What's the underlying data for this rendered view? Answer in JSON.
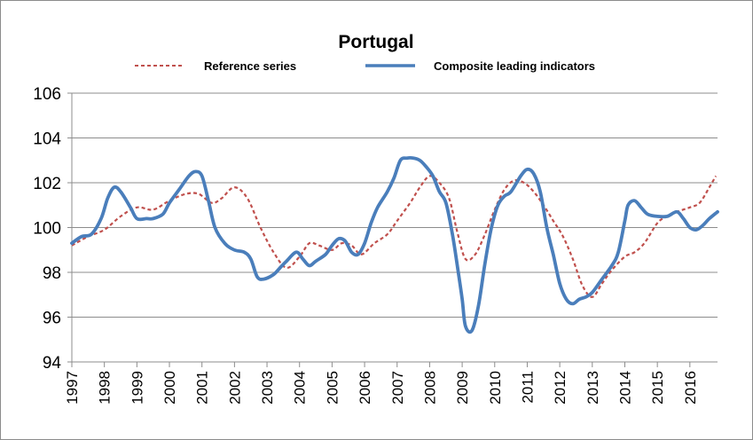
{
  "chart_data": {
    "type": "line",
    "title": "Portugal",
    "xlabel": "",
    "ylabel": "",
    "xlim": [
      1997,
      2016.85
    ],
    "ylim": [
      94,
      106
    ],
    "y_ticks": [
      94,
      96,
      98,
      100,
      102,
      104,
      106
    ],
    "x_ticks": [
      1997,
      1998,
      1999,
      2000,
      2001,
      2002,
      2003,
      2004,
      2005,
      2006,
      2007,
      2008,
      2009,
      2010,
      2011,
      2012,
      2013,
      2014,
      2015,
      2016
    ],
    "x_tick_labels": [
      "1997",
      "1998",
      "1999",
      "2000",
      "2001",
      "2002",
      "2003",
      "2004",
      "2005",
      "2006",
      "2007",
      "2008",
      "2009",
      "2010",
      "2011",
      "2012",
      "2013",
      "2014",
      "2015",
      "2016"
    ],
    "grid": "horizontal",
    "legend_position": "top",
    "series": [
      {
        "name": "Reference series",
        "color": "#c0504d",
        "style": "dashed",
        "x": [
          1997.0,
          1997.5,
          1998.0,
          1998.5,
          1999.0,
          1999.5,
          2000.0,
          2000.5,
          2000.9,
          2001.3,
          2001.6,
          2002.0,
          2002.4,
          2002.8,
          2003.2,
          2003.6,
          2004.0,
          2004.3,
          2004.6,
          2005.0,
          2005.3,
          2005.6,
          2005.9,
          2006.3,
          2006.7,
          2007.0,
          2007.4,
          2007.7,
          2008.0,
          2008.3,
          2008.6,
          2008.85,
          2009.1,
          2009.4,
          2009.7,
          2010.0,
          2010.3,
          2010.6,
          2010.9,
          2011.2,
          2011.5,
          2011.8,
          2012.1,
          2012.4,
          2012.7,
          2013.0,
          2013.3,
          2013.6,
          2014.0,
          2014.3,
          2014.6,
          2015.0,
          2015.3,
          2015.6,
          2016.0,
          2016.3,
          2016.6,
          2016.8
        ],
        "values": [
          99.2,
          99.6,
          99.9,
          100.5,
          100.9,
          100.8,
          101.2,
          101.5,
          101.5,
          101.1,
          101.3,
          101.8,
          101.3,
          100.0,
          98.9,
          98.2,
          98.7,
          99.3,
          99.2,
          99.0,
          99.3,
          99.2,
          98.8,
          99.3,
          99.7,
          100.3,
          101.1,
          101.8,
          102.3,
          102.0,
          101.3,
          99.8,
          98.6,
          98.8,
          99.7,
          100.8,
          101.7,
          102.1,
          102.0,
          101.6,
          101.0,
          100.3,
          99.6,
          98.6,
          97.4,
          96.9,
          97.5,
          98.1,
          98.7,
          98.9,
          99.3,
          100.2,
          100.5,
          100.7,
          100.9,
          101.1,
          101.8,
          102.3
        ]
      },
      {
        "name": "Composite leading indicators",
        "color": "#4a7ebb",
        "style": "solid",
        "x": [
          1997.0,
          1997.3,
          1997.6,
          1997.9,
          1998.1,
          1998.3,
          1998.5,
          1998.8,
          1999.0,
          1999.3,
          1999.5,
          1999.8,
          2000.0,
          2000.3,
          2000.6,
          2000.8,
          2001.0,
          2001.2,
          2001.4,
          2001.7,
          2002.0,
          2002.3,
          2002.5,
          2002.7,
          2002.9,
          2003.2,
          2003.4,
          2003.6,
          2003.9,
          2004.1,
          2004.3,
          2004.5,
          2004.8,
          2005.0,
          2005.2,
          2005.4,
          2005.6,
          2005.8,
          2006.0,
          2006.2,
          2006.4,
          2006.7,
          2006.9,
          2007.1,
          2007.3,
          2007.5,
          2007.7,
          2007.9,
          2008.1,
          2008.3,
          2008.5,
          2008.7,
          2008.85,
          2009.0,
          2009.1,
          2009.3,
          2009.5,
          2009.7,
          2009.9,
          2010.1,
          2010.3,
          2010.5,
          2010.8,
          2011.0,
          2011.2,
          2011.4,
          2011.6,
          2011.8,
          2012.0,
          2012.2,
          2012.4,
          2012.6,
          2012.8,
          2013.0,
          2013.3,
          2013.6,
          2013.8,
          2014.0,
          2014.1,
          2014.3,
          2014.5,
          2014.7,
          2015.0,
          2015.3,
          2015.6,
          2015.8,
          2016.0,
          2016.2,
          2016.4,
          2016.6,
          2016.85
        ],
        "values": [
          99.3,
          99.6,
          99.7,
          100.4,
          101.3,
          101.8,
          101.6,
          100.9,
          100.4,
          100.4,
          100.4,
          100.6,
          101.1,
          101.7,
          102.3,
          102.5,
          102.3,
          101.2,
          100.0,
          99.3,
          99.0,
          98.9,
          98.6,
          97.8,
          97.7,
          97.9,
          98.2,
          98.5,
          98.9,
          98.6,
          98.3,
          98.5,
          98.8,
          99.2,
          99.5,
          99.4,
          98.9,
          98.8,
          99.3,
          100.2,
          100.9,
          101.6,
          102.2,
          103.0,
          103.1,
          103.1,
          103.0,
          102.7,
          102.3,
          101.6,
          101.1,
          99.7,
          98.3,
          96.8,
          95.6,
          95.4,
          96.5,
          98.4,
          100.0,
          101.0,
          101.4,
          101.6,
          102.3,
          102.6,
          102.4,
          101.6,
          100.0,
          98.8,
          97.5,
          96.8,
          96.6,
          96.8,
          96.9,
          97.1,
          97.7,
          98.3,
          98.9,
          100.3,
          101.0,
          101.2,
          100.9,
          100.6,
          100.5,
          100.5,
          100.7,
          100.4,
          100.0,
          99.9,
          100.1,
          100.4,
          100.7
        ]
      }
    ]
  }
}
